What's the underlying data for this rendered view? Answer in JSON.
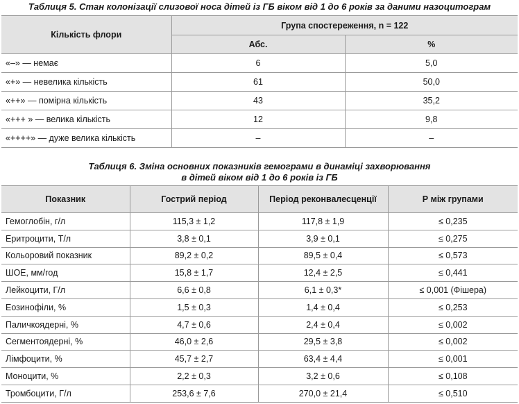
{
  "table5": {
    "caption": "Таблиця 5. Стан колонізації слизової носа дітей із ГБ віком від 1 до 6 років за даними назоцитограм",
    "header": {
      "flora": "Кількість флори",
      "group": "Група спостереження, n = 122",
      "abs": "Абс.",
      "pct": "%"
    },
    "rows": [
      {
        "label": "«–» — немає",
        "abs": "6",
        "pct": "5,0"
      },
      {
        "label": "«+» — невелика кількість",
        "abs": "61",
        "pct": "50,0"
      },
      {
        "label": "«++» — помірна кількість",
        "abs": "43",
        "pct": "35,2"
      },
      {
        "label": "«+++ » — велика кількість",
        "abs": "12",
        "pct": "9,8"
      },
      {
        "label": "«++++» — дуже велика кількість",
        "abs": "–",
        "pct": "–"
      }
    ]
  },
  "table6": {
    "caption_line1": "Таблиця 6. Зміна основних показників гемограми в динаміці захворювання",
    "caption_line2": "в дітей віком від 1 до 6 років із ГБ",
    "header": {
      "indicator": "Показник",
      "acute": "Гострий період",
      "recovery": "Період реконвалесценції",
      "p": "Р між групами"
    },
    "rows": [
      {
        "label": "Гемоглобін, г/л",
        "acute": "115,3 ± 1,2",
        "recovery": "117,8 ± 1,9",
        "p": "≤ 0,235"
      },
      {
        "label": "Еритроцити, Т/л",
        "acute": "3,8 ± 0,1",
        "recovery": "3,9 ± 0,1",
        "p": "≤ 0,275"
      },
      {
        "label": "Кольоровий показник",
        "acute": "89,2 ± 0,2",
        "recovery": "89,5 ± 0,4",
        "p": "≤ 0,573"
      },
      {
        "label": "ШОЕ, мм/год",
        "acute": "15,8 ± 1,7",
        "recovery": "12,4 ± 2,5",
        "p": "≤ 0,441"
      },
      {
        "label": "Лейкоцити, Г/л",
        "acute": "6,6 ± 0,8",
        "recovery": "6,1 ± 0,3*",
        "p": "≤ 0,001 (Фішера)"
      },
      {
        "label": "Еозинофіли, %",
        "acute": "1,5 ± 0,3",
        "recovery": "1,4 ± 0,4",
        "p": "≤ 0,253"
      },
      {
        "label": "Паличкоядерні, %",
        "acute": "4,7 ± 0,6",
        "recovery": "2,4 ± 0,4",
        "p": "≤ 0,002"
      },
      {
        "label": "Сегментоядерні, %",
        "acute": "46,0 ± 2,6",
        "recovery": "29,5 ± 3,8",
        "p": "≤ 0,002"
      },
      {
        "label": "Лімфоцити, %",
        "acute": "45,7 ± 2,7",
        "recovery": "63,4 ± 4,4",
        "p": "≤ 0,001"
      },
      {
        "label": "Моноцити, %",
        "acute": "2,2 ± 0,3",
        "recovery": "3,2 ± 0,6",
        "p": "≤ 0,108"
      },
      {
        "label": "Тромбоцити, Г/л",
        "acute": "253,6 ± 7,6",
        "recovery": "270,0 ± 21,4",
        "p": "≤ 0,510"
      }
    ]
  }
}
